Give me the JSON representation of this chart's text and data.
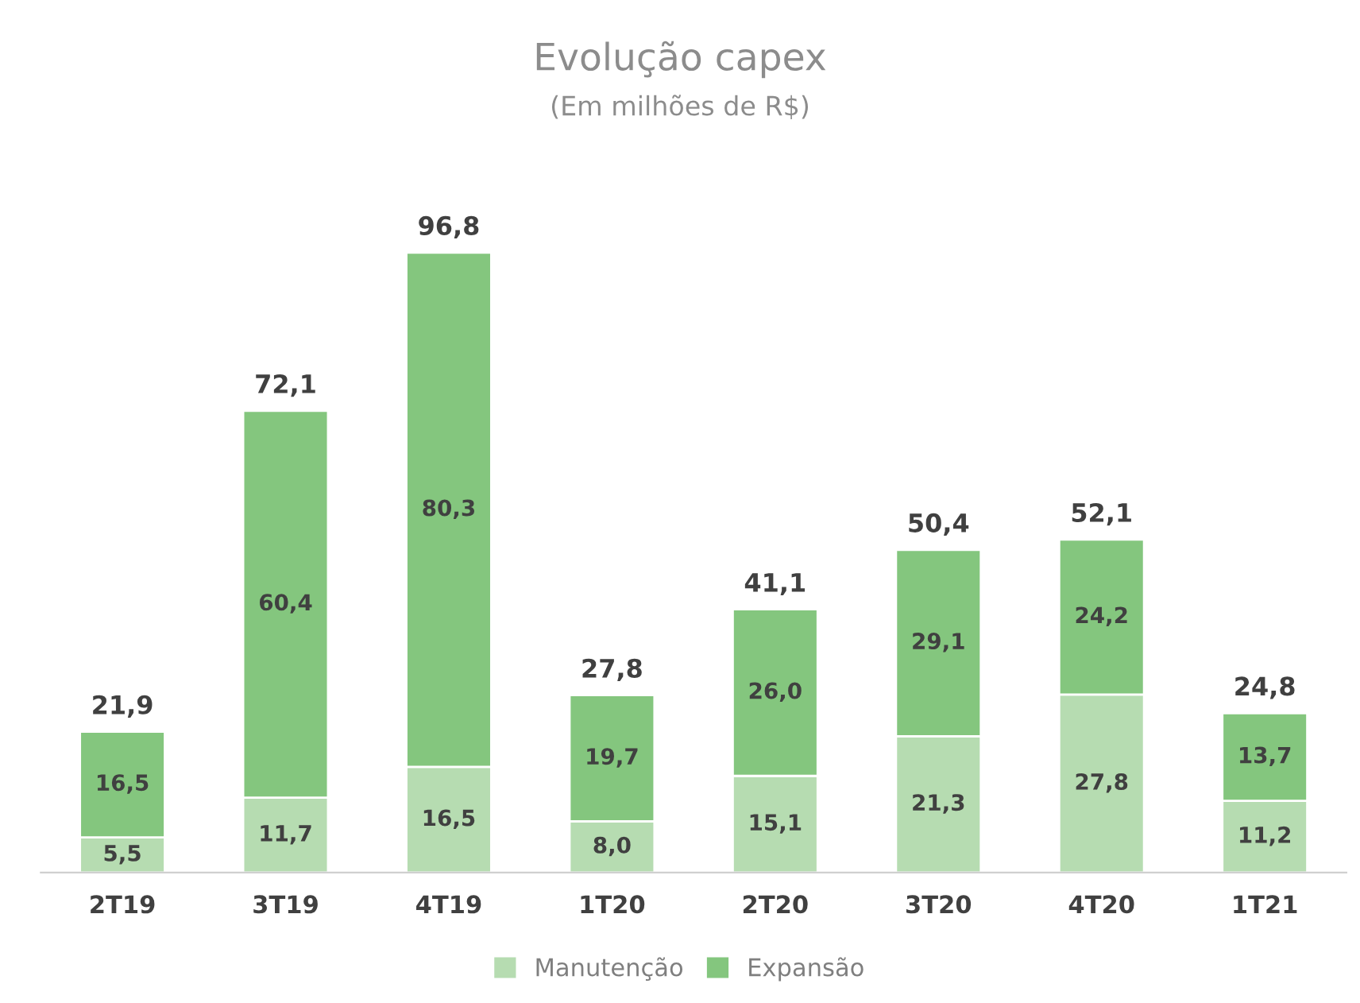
{
  "chart_data": {
    "type": "bar",
    "title": "Evolução capex",
    "subtitle": "(Em milhões de R$)",
    "categories": [
      "2T19",
      "3T19",
      "4T19",
      "1T20",
      "2T20",
      "3T20",
      "4T20",
      "1T21"
    ],
    "stacked": true,
    "legend": "bottom",
    "grid": false,
    "series": [
      {
        "name": "Manutenção",
        "color": "#b6dcb1",
        "values": [
          5.5,
          11.7,
          16.5,
          8.0,
          15.1,
          21.3,
          27.8,
          11.2
        ],
        "value_labels": [
          "5,5",
          "11,7",
          "16,5",
          "8,0",
          "15,1",
          "21,3",
          "27,8",
          "11,2"
        ]
      },
      {
        "name": "Expansão",
        "color": "#84c67e",
        "values": [
          16.5,
          60.4,
          80.3,
          19.7,
          26.0,
          29.1,
          24.2,
          13.7
        ],
        "value_labels": [
          "16,5",
          "60,4",
          "80,3",
          "19,7",
          "26,0",
          "29,1",
          "24,2",
          "13,7"
        ]
      }
    ],
    "totals": [
      "21,9",
      "72,1",
      "96,8",
      "27,8",
      "41,1",
      "50,4",
      "52,1",
      "24,8"
    ]
  }
}
